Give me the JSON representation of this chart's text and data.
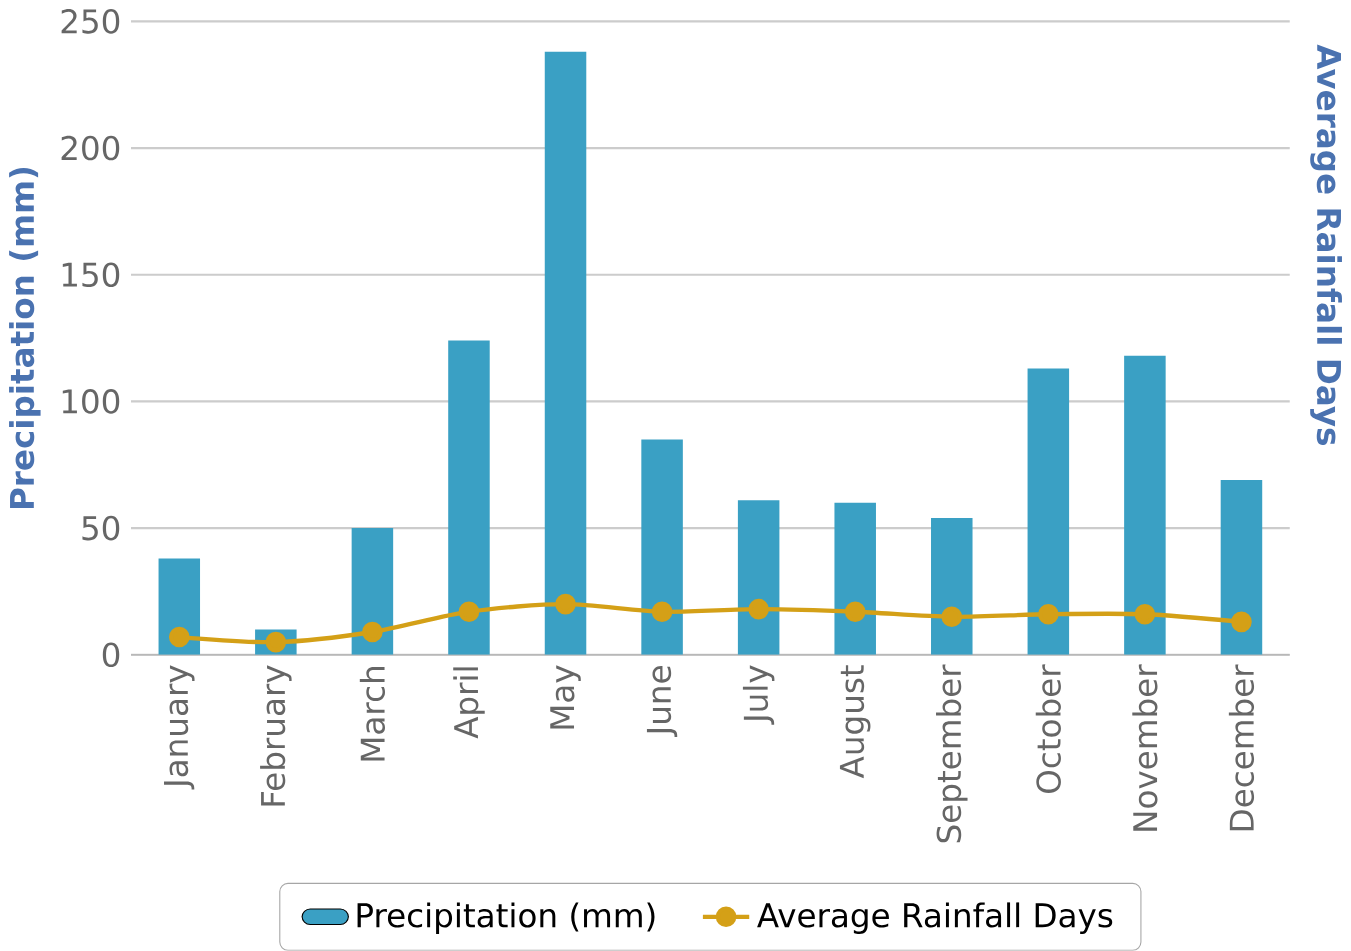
{
  "chart_data": {
    "type": "bar",
    "ylabel": "Precipitation (mm)",
    "y2label": "Average Rainfall Days",
    "categories": [
      "January",
      "February",
      "March",
      "April",
      "May",
      "June",
      "July",
      "August",
      "September",
      "October",
      "November",
      "December"
    ],
    "series": [
      {
        "name": "Precipitation (mm)",
        "color": "#3aa0c4",
        "values": [
          38,
          10,
          50,
          124,
          238,
          85,
          61,
          60,
          54,
          113,
          118,
          69
        ]
      },
      {
        "name": "Average Rainfall Days",
        "type": "line",
        "color": "#d4a017",
        "marker": "circle",
        "values": [
          7,
          5,
          9,
          17,
          20,
          17,
          18,
          17,
          15,
          16,
          16,
          13
        ]
      }
    ],
    "ylim": [
      0,
      250
    ],
    "yticks": [
      0,
      50,
      100,
      150,
      200,
      250
    ],
    "grid": "y",
    "legend": "bottom"
  }
}
